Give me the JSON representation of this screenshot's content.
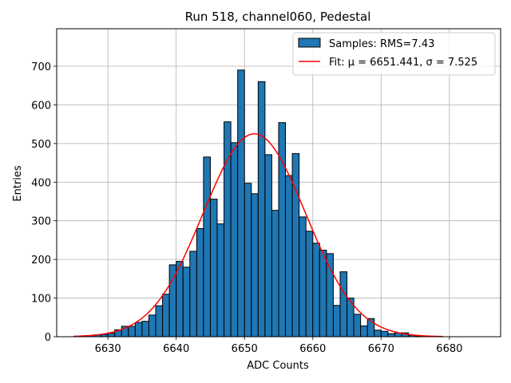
{
  "chart_data": {
    "type": "histogram",
    "title": "Run 518, channel060, Pedestal",
    "xlabel": "ADC Counts",
    "ylabel": "Entries",
    "xlim": [
      6622.5,
      6687.5
    ],
    "ylim": [
      0,
      797
    ],
    "xticks": [
      6630,
      6640,
      6650,
      6660,
      6670,
      6680
    ],
    "yticks": [
      0,
      100,
      200,
      300,
      400,
      500,
      600,
      700
    ],
    "grid": true,
    "legend_position": "top-right",
    "histogram": {
      "name": "Samples: RMS=7.43",
      "color": "#1f77b4",
      "edge_color": "#000000",
      "bin_width": 1,
      "bin_starts": [
        6625,
        6626,
        6627,
        6628,
        6629,
        6630,
        6631,
        6632,
        6633,
        6634,
        6635,
        6636,
        6637,
        6638,
        6639,
        6640,
        6641,
        6642,
        6643,
        6644,
        6645,
        6646,
        6647,
        6648,
        6649,
        6650,
        6651,
        6652,
        6653,
        6654,
        6655,
        6656,
        6657,
        6658,
        6659,
        6660,
        6661,
        6662,
        6663,
        6664,
        6665,
        6666,
        6667,
        6668,
        6669,
        6670,
        6671,
        6672,
        6673,
        6674,
        6675,
        6676,
        6677,
        6678
      ],
      "counts": [
        1,
        1,
        3,
        5,
        6,
        9,
        18,
        27,
        27,
        37,
        40,
        56,
        80,
        110,
        186,
        195,
        180,
        221,
        280,
        465,
        356,
        292,
        556,
        502,
        690,
        397,
        370,
        660,
        471,
        327,
        554,
        417,
        474,
        310,
        273,
        242,
        224,
        215,
        81,
        168,
        100,
        58,
        28,
        47,
        17,
        14,
        8,
        10,
        10,
        4,
        1,
        1,
        1,
        1
      ]
    },
    "fit": {
      "name": "Fit: μ = 6651.441, σ = 7.525",
      "color": "#ff0000",
      "mu": 6651.441,
      "sigma": 7.525,
      "amplitude": 525,
      "x_range": [
        6625,
        6679
      ]
    }
  }
}
